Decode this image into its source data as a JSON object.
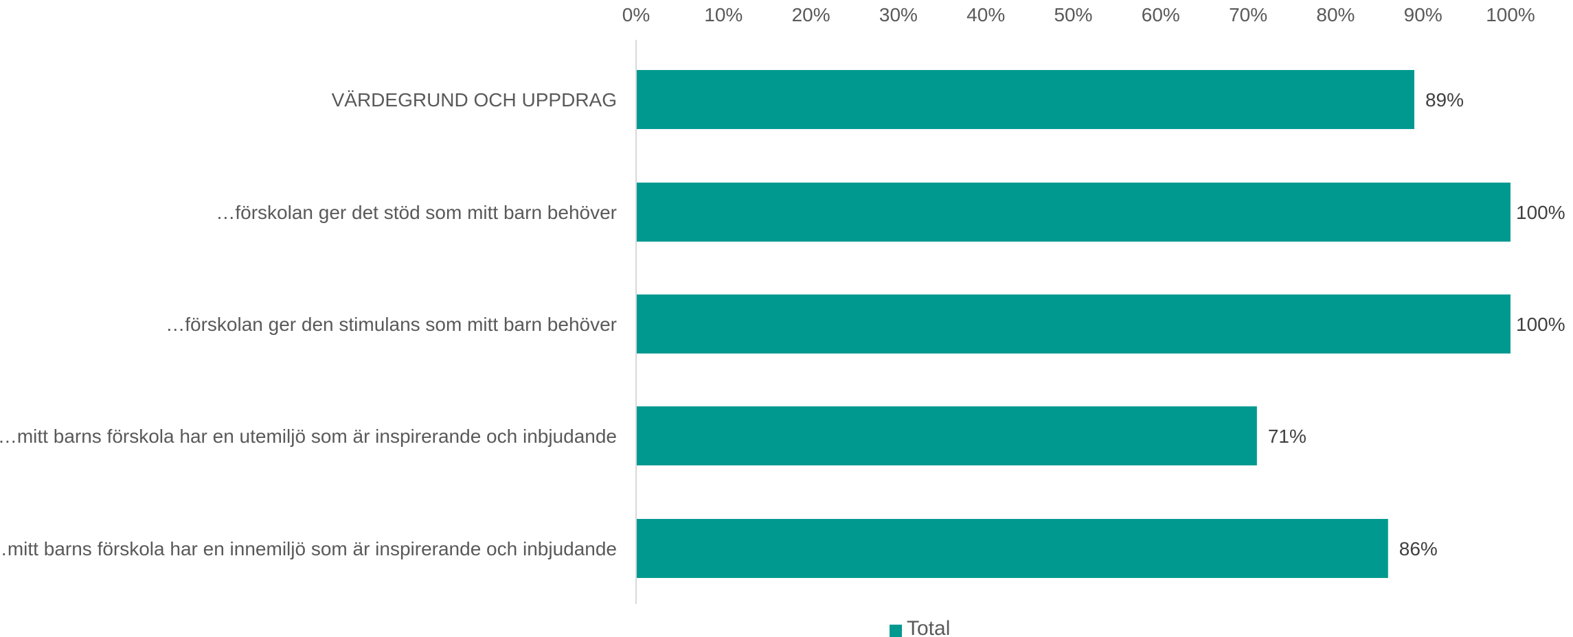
{
  "chart_data": {
    "type": "bar",
    "orientation": "horizontal",
    "title": "",
    "xlabel": "",
    "ylabel": "",
    "xlim": [
      0,
      100
    ],
    "x_tick_values": [
      0,
      10,
      20,
      30,
      40,
      50,
      60,
      70,
      80,
      90,
      100
    ],
    "x_tick_labels": [
      "0%",
      "10%",
      "20%",
      "30%",
      "40%",
      "50%",
      "60%",
      "70%",
      "80%",
      "90%",
      "100%"
    ],
    "x_axis_position": "top",
    "grid": false,
    "categories": [
      "VÄRDEGRUND OCH UPPDRAG",
      "…förskolan ger det stöd som mitt barn behöver",
      "…förskolan ger den stimulans som mitt barn behöver",
      "…mitt barns förskola har en utemiljö som är inspirerande och inbjudande",
      "…mitt barns förskola har en innemiljö som är inspirerande och inbjudande"
    ],
    "series": [
      {
        "name": "Total",
        "values": [
          89,
          100,
          100,
          71,
          86
        ],
        "data_labels": [
          "89%",
          "100%",
          "100%",
          "71%",
          "86%"
        ],
        "color": "#009990"
      }
    ],
    "legend": {
      "position": "bottom",
      "entries": [
        "Total"
      ]
    }
  },
  "colors": {
    "bar": "#009990",
    "axis_line": "#d9d9d9",
    "text": "#595959"
  }
}
